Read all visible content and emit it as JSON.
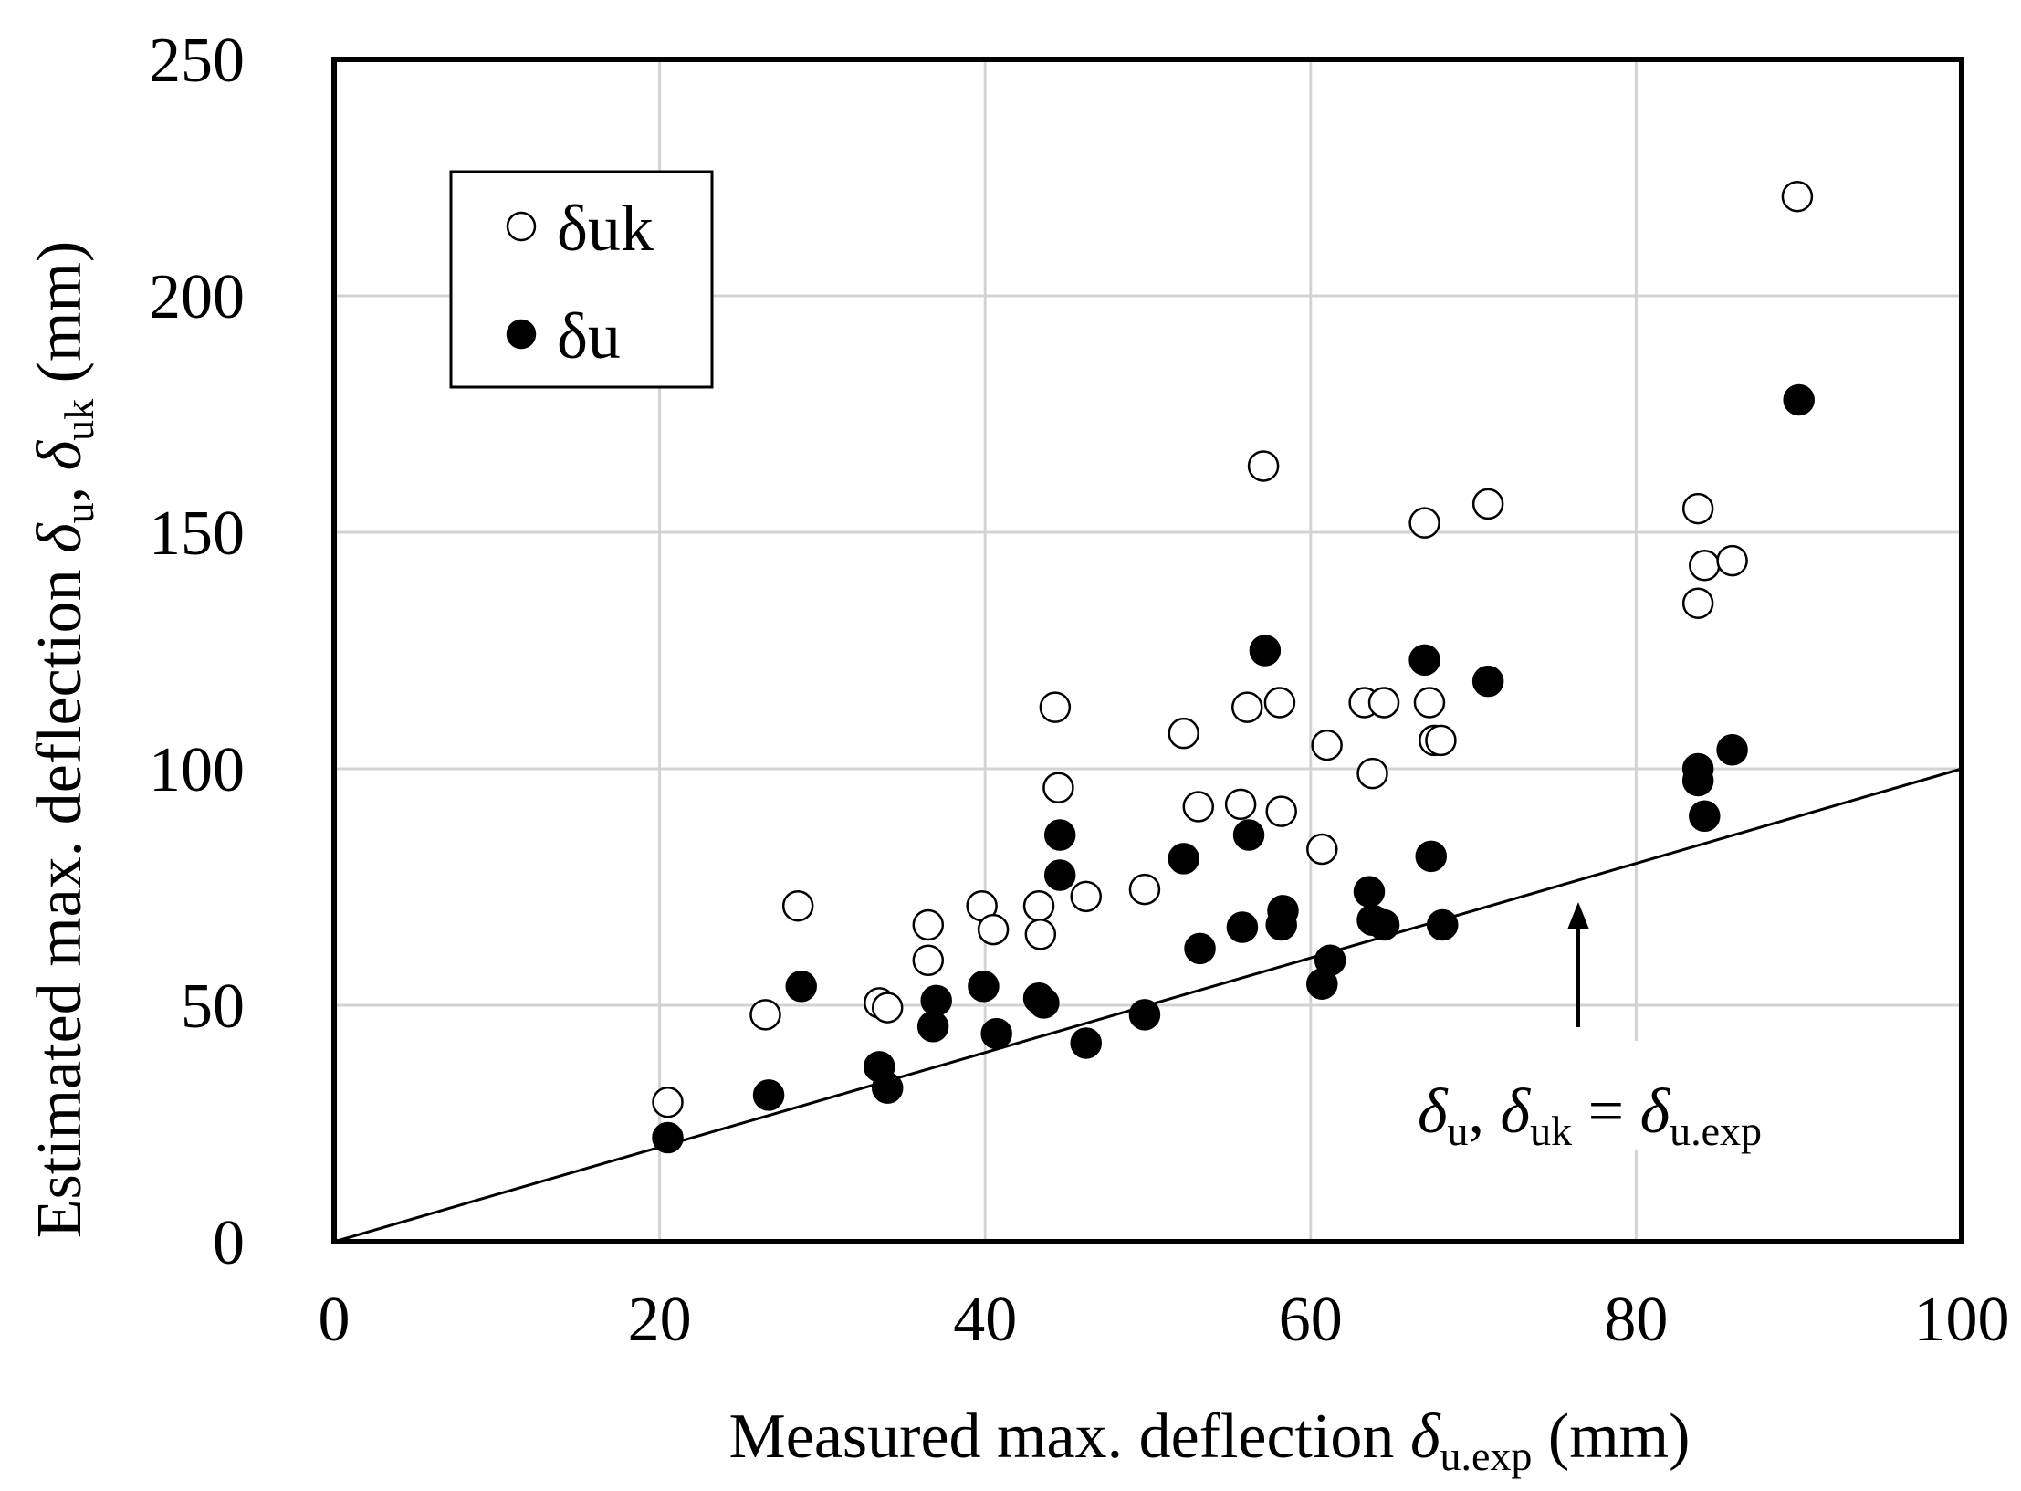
{
  "chart_data": {
    "type": "scatter",
    "title": "",
    "xlabel": {
      "main": "Measured max. deflection ",
      "sym": "δ",
      "sub": "u.exp",
      "unit": " (mm)"
    },
    "ylabel": {
      "main": "Estimated max. deflection ",
      "sym1": "δ",
      "sub1": "u",
      "sep": ", ",
      "sym2": "δ",
      "sub2": "uk",
      "unit": " (mm)"
    },
    "xlim": [
      0,
      100
    ],
    "ylim": [
      0,
      250
    ],
    "xticks": [
      "0",
      "20",
      "40",
      "60",
      "80",
      "100"
    ],
    "yticks": [
      "0",
      "50",
      "100",
      "150",
      "200",
      "250"
    ],
    "xtick_values": [
      0,
      20,
      40,
      60,
      80,
      100
    ],
    "ytick_values": [
      0,
      50,
      100,
      150,
      200,
      250
    ],
    "grid": true,
    "legend": {
      "position": "top-left",
      "entries": [
        "δuk",
        "δu"
      ]
    },
    "reference_line": {
      "x": [
        0,
        100
      ],
      "y": [
        0,
        100
      ]
    },
    "annotation": {
      "d1": "δ",
      "s1": "u",
      "sep": ", ",
      "d2": "δ",
      "s2": "uk",
      "eq": " = ",
      "d3": "δ",
      "s3": "u.exp"
    },
    "series": [
      {
        "name": "δuk",
        "marker": "open-circle",
        "x": [
          20.5,
          26.5,
          28.5,
          33.5,
          34,
          36.5,
          36.5,
          39.8,
          40.5,
          43.3,
          43.4,
          44.3,
          44.5,
          46.2,
          49.8,
          52.2,
          53.1,
          55.7,
          56.1,
          57.1,
          58.1,
          58.2,
          60.7,
          61,
          63.3,
          63.8,
          64.5,
          67,
          67.3,
          67.6,
          68,
          70.9,
          83.8,
          83.8,
          84.2,
          85.9,
          89.9
        ],
        "y": [
          29.5,
          48,
          71,
          50.5,
          49.5,
          67,
          59.5,
          71,
          66,
          71,
          65,
          113,
          96,
          73,
          74.5,
          107.5,
          92,
          92.5,
          113,
          164,
          114,
          91,
          83,
          105,
          114,
          99,
          114,
          152,
          114,
          106,
          106,
          156,
          155,
          135,
          143,
          144,
          221
        ]
      },
      {
        "name": "δu",
        "marker": "filled-circle",
        "x": [
          20.5,
          26.7,
          28.7,
          33.5,
          34,
          36.8,
          37,
          39.9,
          40.7,
          43.3,
          43.6,
          44.6,
          44.6,
          46.2,
          49.8,
          52.2,
          53.2,
          55.8,
          56.2,
          57.2,
          58.2,
          58.3,
          60.7,
          61.2,
          63.6,
          63.8,
          64.5,
          67,
          67.4,
          68.1,
          70.9,
          83.8,
          83.8,
          84.2,
          85.9,
          90
        ],
        "y": [
          22,
          31,
          54,
          37,
          32.5,
          45.5,
          51,
          54,
          44,
          51.5,
          50.5,
          86,
          77.5,
          42,
          48,
          81,
          62,
          66.5,
          86,
          125,
          67,
          70,
          54.5,
          59.5,
          74,
          68,
          67,
          123,
          81.5,
          67,
          118.5,
          100,
          97.5,
          90,
          104,
          178
        ]
      }
    ]
  }
}
